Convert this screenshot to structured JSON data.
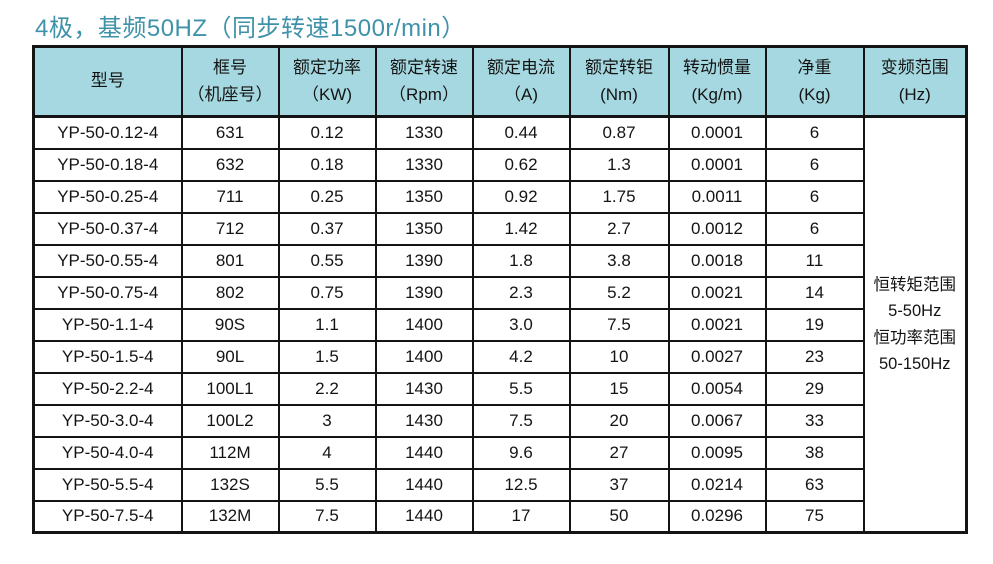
{
  "title": "4极，基频50HZ（同步转速1500r/min）",
  "colors": {
    "title": "#3f92a8",
    "header_bg": "#a5d8e0",
    "border": "#141414",
    "text": "#141414"
  },
  "table": {
    "headers": [
      {
        "line1": "型号",
        "line2": ""
      },
      {
        "line1": "框号",
        "line2": "（机座号）"
      },
      {
        "line1": "额定功率",
        "line2": "（KW)"
      },
      {
        "line1": "额定转速",
        "line2": "（Rpm）"
      },
      {
        "line1": "额定电流",
        "line2": "（A)"
      },
      {
        "line1": "额定转钜",
        "line2": "(Nm)"
      },
      {
        "line1": "转动惯量",
        "line2": "(Kg/m)"
      },
      {
        "line1": "净重",
        "line2": "(Kg)"
      },
      {
        "line1": "变频范围",
        "line2": "(Hz)"
      }
    ],
    "rows": [
      [
        "YP-50-0.12-4",
        "631",
        "0.12",
        "1330",
        "0.44",
        "0.87",
        "0.0001",
        "6"
      ],
      [
        "YP-50-0.18-4",
        "632",
        "0.18",
        "1330",
        "0.62",
        "1.3",
        "0.0001",
        "6"
      ],
      [
        "YP-50-0.25-4",
        "711",
        "0.25",
        "1350",
        "0.92",
        "1.75",
        "0.0011",
        "6"
      ],
      [
        "YP-50-0.37-4",
        "712",
        "0.37",
        "1350",
        "1.42",
        "2.7",
        "0.0012",
        "6"
      ],
      [
        "YP-50-0.55-4",
        "801",
        "0.55",
        "1390",
        "1.8",
        "3.8",
        "0.0018",
        "11"
      ],
      [
        "YP-50-0.75-4",
        "802",
        "0.75",
        "1390",
        "2.3",
        "5.2",
        "0.0021",
        "14"
      ],
      [
        "YP-50-1.1-4",
        "90S",
        "1.1",
        "1400",
        "3.0",
        "7.5",
        "0.0021",
        "19"
      ],
      [
        "YP-50-1.5-4",
        "90L",
        "1.5",
        "1400",
        "4.2",
        "10",
        "0.0027",
        "23"
      ],
      [
        "YP-50-2.2-4",
        "100L1",
        "2.2",
        "1430",
        "5.5",
        "15",
        "0.0054",
        "29"
      ],
      [
        "YP-50-3.0-4",
        "100L2",
        "3",
        "1430",
        "7.5",
        "20",
        "0.0067",
        "33"
      ],
      [
        "YP-50-4.0-4",
        "112M",
        "4",
        "1440",
        "9.6",
        "27",
        "0.0095",
        "38"
      ],
      [
        "YP-50-5.5-4",
        "132S",
        "5.5",
        "1440",
        "12.5",
        "37",
        "0.0214",
        "63"
      ],
      [
        "YP-50-7.5-4",
        "132M",
        "7.5",
        "1440",
        "17",
        "50",
        "0.0296",
        "75"
      ]
    ],
    "freq_note": [
      "恒转矩范围",
      "5-50Hz",
      "恒功率范围",
      "50-150Hz"
    ]
  }
}
